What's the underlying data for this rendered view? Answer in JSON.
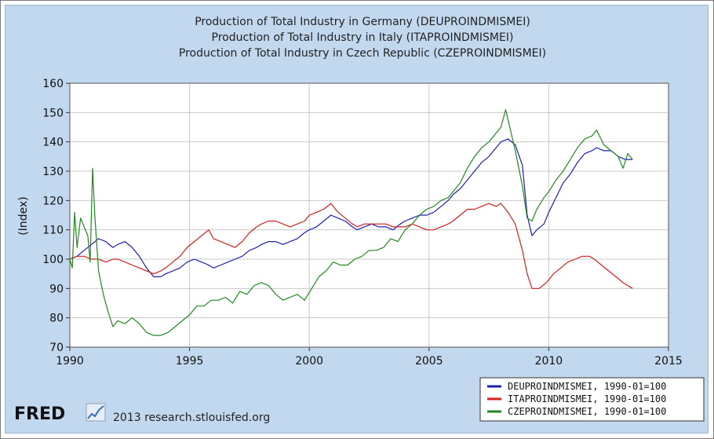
{
  "chart_data": {
    "type": "line",
    "title": [
      "Production of Total Industry in Germany (DEUPROINDMISMEI)",
      "Production of Total Industry in Italy (ITAPROINDMISMEI)",
      "Production of Total Industry in Czech Republic (CZEPROINDMISMEI)"
    ],
    "xlabel": "",
    "ylabel": "(Index)",
    "xlim": [
      1990,
      2015
    ],
    "ylim": [
      70,
      160
    ],
    "x_ticks": [
      "1990",
      "1995",
      "2000",
      "2005",
      "2010",
      "2015"
    ],
    "y_ticks": [
      "70",
      "80",
      "90",
      "100",
      "110",
      "120",
      "130",
      "140",
      "150",
      "160"
    ],
    "grid": true,
    "legend_position": "bottom-right",
    "series": [
      {
        "name": "DEUPROINDMISMEI, 1990-01=100",
        "color": "#1f1fb4",
        "points": [
          [
            1990.0,
            100
          ],
          [
            1990.3,
            101
          ],
          [
            1990.6,
            103
          ],
          [
            1990.9,
            105
          ],
          [
            1991.2,
            107
          ],
          [
            1991.5,
            106
          ],
          [
            1991.8,
            104
          ],
          [
            1992.0,
            105
          ],
          [
            1992.3,
            106
          ],
          [
            1992.6,
            104
          ],
          [
            1992.9,
            101
          ],
          [
            1993.2,
            97
          ],
          [
            1993.5,
            94
          ],
          [
            1993.8,
            94
          ],
          [
            1994.0,
            95
          ],
          [
            1994.3,
            96
          ],
          [
            1994.6,
            97
          ],
          [
            1994.9,
            99
          ],
          [
            1995.2,
            100
          ],
          [
            1995.5,
            99
          ],
          [
            1995.8,
            98
          ],
          [
            1996.0,
            97
          ],
          [
            1996.3,
            98
          ],
          [
            1996.6,
            99
          ],
          [
            1996.9,
            100
          ],
          [
            1997.2,
            101
          ],
          [
            1997.5,
            103
          ],
          [
            1997.8,
            104
          ],
          [
            1998.0,
            105
          ],
          [
            1998.3,
            106
          ],
          [
            1998.6,
            106
          ],
          [
            1998.9,
            105
          ],
          [
            1999.2,
            106
          ],
          [
            1999.5,
            107
          ],
          [
            1999.8,
            109
          ],
          [
            2000.0,
            110
          ],
          [
            2000.3,
            111
          ],
          [
            2000.6,
            113
          ],
          [
            2000.9,
            115
          ],
          [
            2001.2,
            114
          ],
          [
            2001.5,
            113
          ],
          [
            2001.8,
            111
          ],
          [
            2002.0,
            110
          ],
          [
            2002.3,
            111
          ],
          [
            2002.6,
            112
          ],
          [
            2002.9,
            111
          ],
          [
            2003.2,
            111
          ],
          [
            2003.5,
            110
          ],
          [
            2003.8,
            112
          ],
          [
            2004.0,
            113
          ],
          [
            2004.3,
            114
          ],
          [
            2004.6,
            115
          ],
          [
            2004.9,
            115
          ],
          [
            2005.2,
            116
          ],
          [
            2005.5,
            118
          ],
          [
            2005.8,
            120
          ],
          [
            2006.0,
            122
          ],
          [
            2006.3,
            124
          ],
          [
            2006.6,
            127
          ],
          [
            2006.9,
            130
          ],
          [
            2007.2,
            133
          ],
          [
            2007.5,
            135
          ],
          [
            2007.8,
            138
          ],
          [
            2008.0,
            140
          ],
          [
            2008.3,
            141
          ],
          [
            2008.6,
            139
          ],
          [
            2008.9,
            132
          ],
          [
            2009.1,
            115
          ],
          [
            2009.3,
            108
          ],
          [
            2009.5,
            110
          ],
          [
            2009.8,
            112
          ],
          [
            2010.0,
            116
          ],
          [
            2010.3,
            121
          ],
          [
            2010.6,
            126
          ],
          [
            2010.9,
            129
          ],
          [
            2011.2,
            133
          ],
          [
            2011.5,
            136
          ],
          [
            2011.8,
            137
          ],
          [
            2012.0,
            138
          ],
          [
            2012.3,
            137
          ],
          [
            2012.6,
            137
          ],
          [
            2012.9,
            135
          ],
          [
            2013.2,
            134
          ],
          [
            2013.5,
            134
          ]
        ]
      },
      {
        "name": "ITAPROINDMISMEI, 1990-01=100",
        "color": "#d42020",
        "points": [
          [
            1990.0,
            100
          ],
          [
            1990.3,
            101
          ],
          [
            1990.6,
            101
          ],
          [
            1990.9,
            100
          ],
          [
            1991.2,
            100
          ],
          [
            1991.5,
            99
          ],
          [
            1991.8,
            100
          ],
          [
            1992.0,
            100
          ],
          [
            1992.3,
            99
          ],
          [
            1992.6,
            98
          ],
          [
            1992.9,
            97
          ],
          [
            1993.2,
            96
          ],
          [
            1993.5,
            95
          ],
          [
            1993.8,
            96
          ],
          [
            1994.0,
            97
          ],
          [
            1994.3,
            99
          ],
          [
            1994.6,
            101
          ],
          [
            1994.9,
            104
          ],
          [
            1995.2,
            106
          ],
          [
            1995.5,
            108
          ],
          [
            1995.8,
            110
          ],
          [
            1996.0,
            107
          ],
          [
            1996.3,
            106
          ],
          [
            1996.6,
            105
          ],
          [
            1996.9,
            104
          ],
          [
            1997.2,
            106
          ],
          [
            1997.5,
            109
          ],
          [
            1997.8,
            111
          ],
          [
            1998.0,
            112
          ],
          [
            1998.3,
            113
          ],
          [
            1998.6,
            113
          ],
          [
            1998.9,
            112
          ],
          [
            1999.2,
            111
          ],
          [
            1999.5,
            112
          ],
          [
            1999.8,
            113
          ],
          [
            2000.0,
            115
          ],
          [
            2000.3,
            116
          ],
          [
            2000.6,
            117
          ],
          [
            2000.9,
            119
          ],
          [
            2001.2,
            116
          ],
          [
            2001.5,
            114
          ],
          [
            2001.8,
            112
          ],
          [
            2002.0,
            111
          ],
          [
            2002.3,
            112
          ],
          [
            2002.6,
            112
          ],
          [
            2002.9,
            112
          ],
          [
            2003.2,
            112
          ],
          [
            2003.5,
            111
          ],
          [
            2003.8,
            111
          ],
          [
            2004.0,
            111
          ],
          [
            2004.3,
            112
          ],
          [
            2004.6,
            111
          ],
          [
            2004.9,
            110
          ],
          [
            2005.2,
            110
          ],
          [
            2005.5,
            111
          ],
          [
            2005.8,
            112
          ],
          [
            2006.0,
            113
          ],
          [
            2006.3,
            115
          ],
          [
            2006.6,
            117
          ],
          [
            2006.9,
            117
          ],
          [
            2007.2,
            118
          ],
          [
            2007.5,
            119
          ],
          [
            2007.8,
            118
          ],
          [
            2008.0,
            119
          ],
          [
            2008.3,
            116
          ],
          [
            2008.6,
            112
          ],
          [
            2008.9,
            103
          ],
          [
            2009.1,
            95
          ],
          [
            2009.3,
            90
          ],
          [
            2009.6,
            90
          ],
          [
            2009.9,
            92
          ],
          [
            2010.2,
            95
          ],
          [
            2010.5,
            97
          ],
          [
            2010.8,
            99
          ],
          [
            2011.1,
            100
          ],
          [
            2011.4,
            101
          ],
          [
            2011.7,
            101
          ],
          [
            2011.9,
            100
          ],
          [
            2012.2,
            98
          ],
          [
            2012.5,
            96
          ],
          [
            2012.8,
            94
          ],
          [
            2013.1,
            92
          ],
          [
            2013.5,
            90
          ]
        ]
      },
      {
        "name": "CZEPROINDMISMEI, 1990-01=100",
        "color": "#208a20",
        "points": [
          [
            1990.0,
            100
          ],
          [
            1990.1,
            97
          ],
          [
            1990.2,
            116
          ],
          [
            1990.3,
            104
          ],
          [
            1990.45,
            114
          ],
          [
            1990.6,
            111
          ],
          [
            1990.75,
            108
          ],
          [
            1990.85,
            99
          ],
          [
            1990.95,
            131
          ],
          [
            1991.05,
            114
          ],
          [
            1991.2,
            96
          ],
          [
            1991.4,
            88
          ],
          [
            1991.6,
            82
          ],
          [
            1991.8,
            77
          ],
          [
            1992.0,
            79
          ],
          [
            1992.3,
            78
          ],
          [
            1992.6,
            80
          ],
          [
            1992.9,
            78
          ],
          [
            1993.2,
            75
          ],
          [
            1993.5,
            74
          ],
          [
            1993.8,
            74
          ],
          [
            1994.1,
            75
          ],
          [
            1994.4,
            77
          ],
          [
            1994.7,
            79
          ],
          [
            1995.0,
            81
          ],
          [
            1995.3,
            84
          ],
          [
            1995.6,
            84
          ],
          [
            1995.9,
            86
          ],
          [
            1996.2,
            86
          ],
          [
            1996.5,
            87
          ],
          [
            1996.8,
            85
          ],
          [
            1997.1,
            89
          ],
          [
            1997.4,
            88
          ],
          [
            1997.7,
            91
          ],
          [
            1998.0,
            92
          ],
          [
            1998.3,
            91
          ],
          [
            1998.6,
            88
          ],
          [
            1998.9,
            86
          ],
          [
            1999.2,
            87
          ],
          [
            1999.5,
            88
          ],
          [
            1999.8,
            86
          ],
          [
            2000.1,
            90
          ],
          [
            2000.4,
            94
          ],
          [
            2000.7,
            96
          ],
          [
            2001.0,
            99
          ],
          [
            2001.3,
            98
          ],
          [
            2001.6,
            98
          ],
          [
            2001.9,
            100
          ],
          [
            2002.2,
            101
          ],
          [
            2002.5,
            103
          ],
          [
            2002.8,
            103
          ],
          [
            2003.1,
            104
          ],
          [
            2003.4,
            107
          ],
          [
            2003.7,
            106
          ],
          [
            2004.0,
            110
          ],
          [
            2004.3,
            112
          ],
          [
            2004.6,
            115
          ],
          [
            2004.9,
            117
          ],
          [
            2005.2,
            118
          ],
          [
            2005.5,
            120
          ],
          [
            2005.8,
            121
          ],
          [
            2006.0,
            123
          ],
          [
            2006.3,
            126
          ],
          [
            2006.6,
            131
          ],
          [
            2006.9,
            135
          ],
          [
            2007.2,
            138
          ],
          [
            2007.5,
            140
          ],
          [
            2007.8,
            143
          ],
          [
            2008.0,
            145
          ],
          [
            2008.2,
            151
          ],
          [
            2008.4,
            144
          ],
          [
            2008.6,
            137
          ],
          [
            2008.9,
            125
          ],
          [
            2009.1,
            114
          ],
          [
            2009.3,
            113
          ],
          [
            2009.5,
            117
          ],
          [
            2009.8,
            121
          ],
          [
            2010.0,
            123
          ],
          [
            2010.3,
            127
          ],
          [
            2010.6,
            130
          ],
          [
            2010.9,
            134
          ],
          [
            2011.2,
            138
          ],
          [
            2011.5,
            141
          ],
          [
            2011.8,
            142
          ],
          [
            2012.0,
            144
          ],
          [
            2012.3,
            139
          ],
          [
            2012.6,
            137
          ],
          [
            2012.9,
            135
          ],
          [
            2013.1,
            131
          ],
          [
            2013.3,
            136
          ],
          [
            2013.5,
            134
          ]
        ]
      }
    ]
  },
  "legend": [
    {
      "label": "DEUPROINDMISMEI, 1990-01=100",
      "color": "#1f1fb4"
    },
    {
      "label": "ITAPROINDMISMEI, 1990-01=100",
      "color": "#d42020"
    },
    {
      "label": "CZEPROINDMISMEI, 1990-01=100",
      "color": "#208a20"
    }
  ],
  "branding": {
    "logo_text": "FRED",
    "credit": "2013 research.stlouisfed.org"
  }
}
